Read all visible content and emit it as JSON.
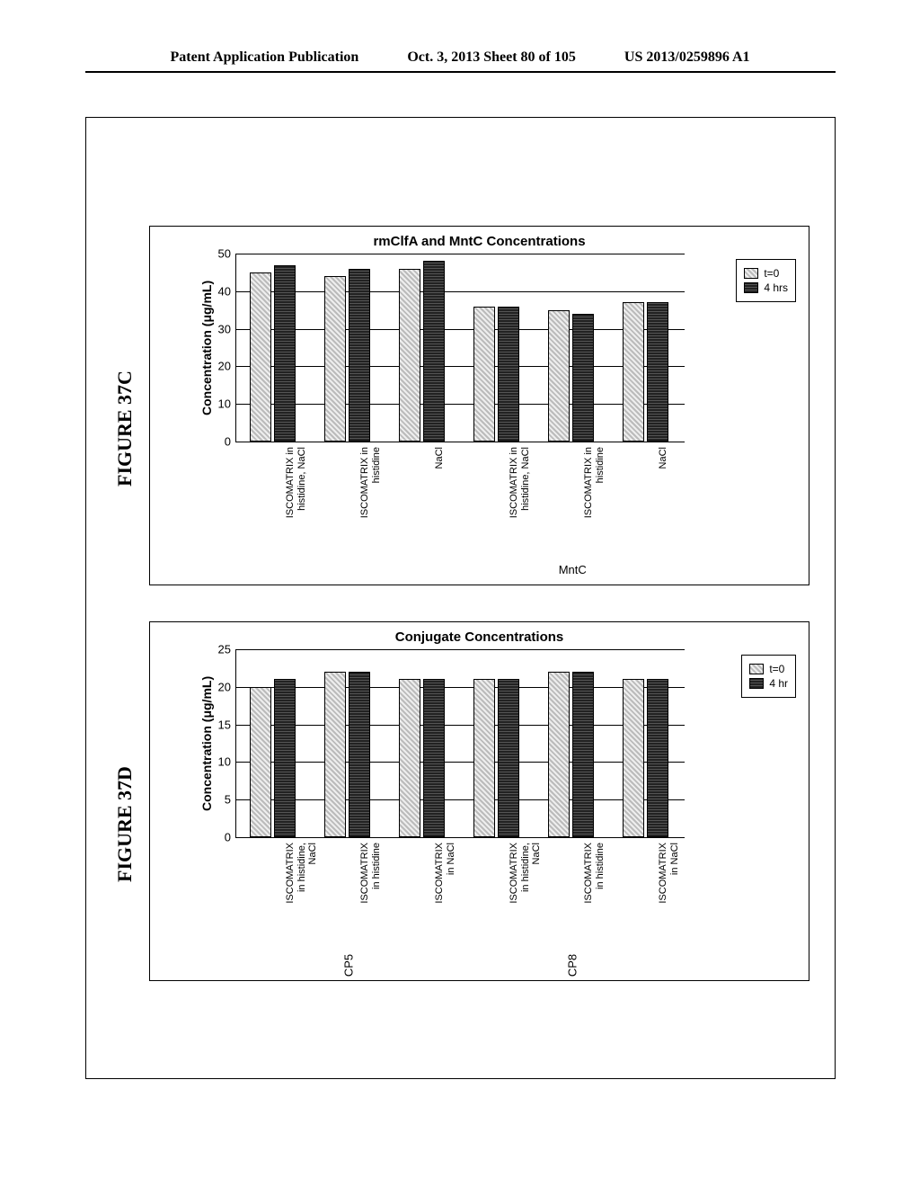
{
  "header": {
    "left": "Patent Application Publication",
    "center": "Oct. 3, 2013  Sheet 80 of 105",
    "right": "US 2013/0259896 A1"
  },
  "fig37c": {
    "label": "FIGURE 37C",
    "title": "rmClfA and MntC Concentrations",
    "ylabel": "Concentration (μg/mL)",
    "ylim": [
      0,
      50
    ],
    "yticks": [
      0,
      10,
      20,
      30,
      40,
      50
    ],
    "categories": [
      "ISCOMATRIX in\nhistidine, NaCl",
      "ISCOMATRIX in\nhistidine",
      "NaCl",
      "ISCOMATRIX in\nhistidine, NaCl",
      "ISCOMATRIX in\nhistidine",
      "NaCl"
    ],
    "group_labels": [
      {
        "text": "",
        "pos_pct": 25
      },
      {
        "text": "MntC",
        "pos_pct": 75
      }
    ],
    "series": [
      {
        "label": "t=0",
        "pattern": "light",
        "values": [
          45,
          44,
          46,
          36,
          35,
          37
        ]
      },
      {
        "label": "4 hrs",
        "pattern": "dark",
        "values": [
          47,
          46,
          48,
          36,
          34,
          37
        ]
      }
    ],
    "colors": {
      "light": "#c8c8c8",
      "dark": "#3a3a3a",
      "border": "#000000",
      "bg": "#ffffff",
      "grid": "#000000"
    }
  },
  "fig37d": {
    "label": "FIGURE 37D",
    "title": "Conjugate Concentrations",
    "ylabel": "Concentration (μg/mL)",
    "ylim": [
      0,
      25
    ],
    "yticks": [
      0,
      5,
      10,
      15,
      20,
      25
    ],
    "categories": [
      "ISCOMATRIX\nin histidine,\nNaCl",
      "ISCOMATRIX\nin histidine",
      "ISCOMATRIX\nin NaCl",
      "ISCOMATRIX\nin histidine,\nNaCl",
      "ISCOMATRIX\nin histidine",
      "ISCOMATRIX\nin NaCl"
    ],
    "group_labels": [
      {
        "text": "CP5",
        "pos_pct": 25
      },
      {
        "text": "CP8",
        "pos_pct": 75
      }
    ],
    "series": [
      {
        "label": "t=0",
        "pattern": "light",
        "values": [
          20,
          22,
          21,
          21,
          22,
          21
        ]
      },
      {
        "label": "4 hr",
        "pattern": "dark",
        "values": [
          21,
          22,
          21,
          21,
          22,
          21
        ]
      }
    ],
    "colors": {
      "light": "#c8c8c8",
      "dark": "#3a3a3a",
      "border": "#000000",
      "bg": "#ffffff",
      "grid": "#000000"
    }
  }
}
